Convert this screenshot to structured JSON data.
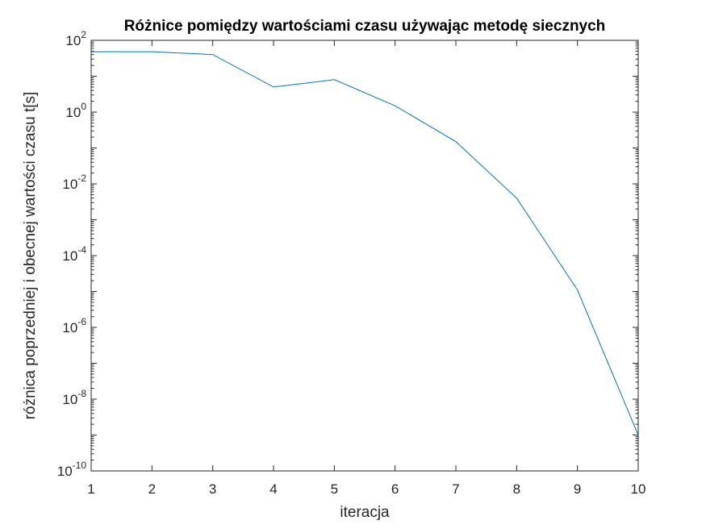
{
  "chart_data": {
    "type": "line",
    "title": "Różnice pomiędzy wartościami czasu używając metodę siecznych",
    "xlabel": "iteracja",
    "ylabel": "różnica poprzedniej i obecnej wartości czasu t[s]",
    "xlim": [
      1,
      10
    ],
    "ylim": [
      1e-10,
      100
    ],
    "yscale": "log",
    "grid": false,
    "x_ticks": [
      1,
      2,
      3,
      4,
      5,
      6,
      7,
      8,
      9,
      10
    ],
    "y_ticks": [
      {
        "value": 100,
        "base": "10",
        "exp": "2"
      },
      {
        "value": 1,
        "base": "10",
        "exp": "0"
      },
      {
        "value": 0.01,
        "base": "10",
        "exp": "-2"
      },
      {
        "value": 0.0001,
        "base": "10",
        "exp": "-4"
      },
      {
        "value": 1e-06,
        "base": "10",
        "exp": "-6"
      },
      {
        "value": 1e-08,
        "base": "10",
        "exp": "-8"
      },
      {
        "value": 1e-10,
        "base": "10",
        "exp": "-10"
      }
    ],
    "series": [
      {
        "color": "#0072BD",
        "x": [
          1,
          2,
          3,
          4,
          5,
          6,
          7,
          8,
          9,
          10
        ],
        "y": [
          48,
          48,
          40,
          5,
          8,
          1.5,
          0.15,
          0.004,
          1.1e-05,
          1e-09
        ]
      }
    ]
  }
}
